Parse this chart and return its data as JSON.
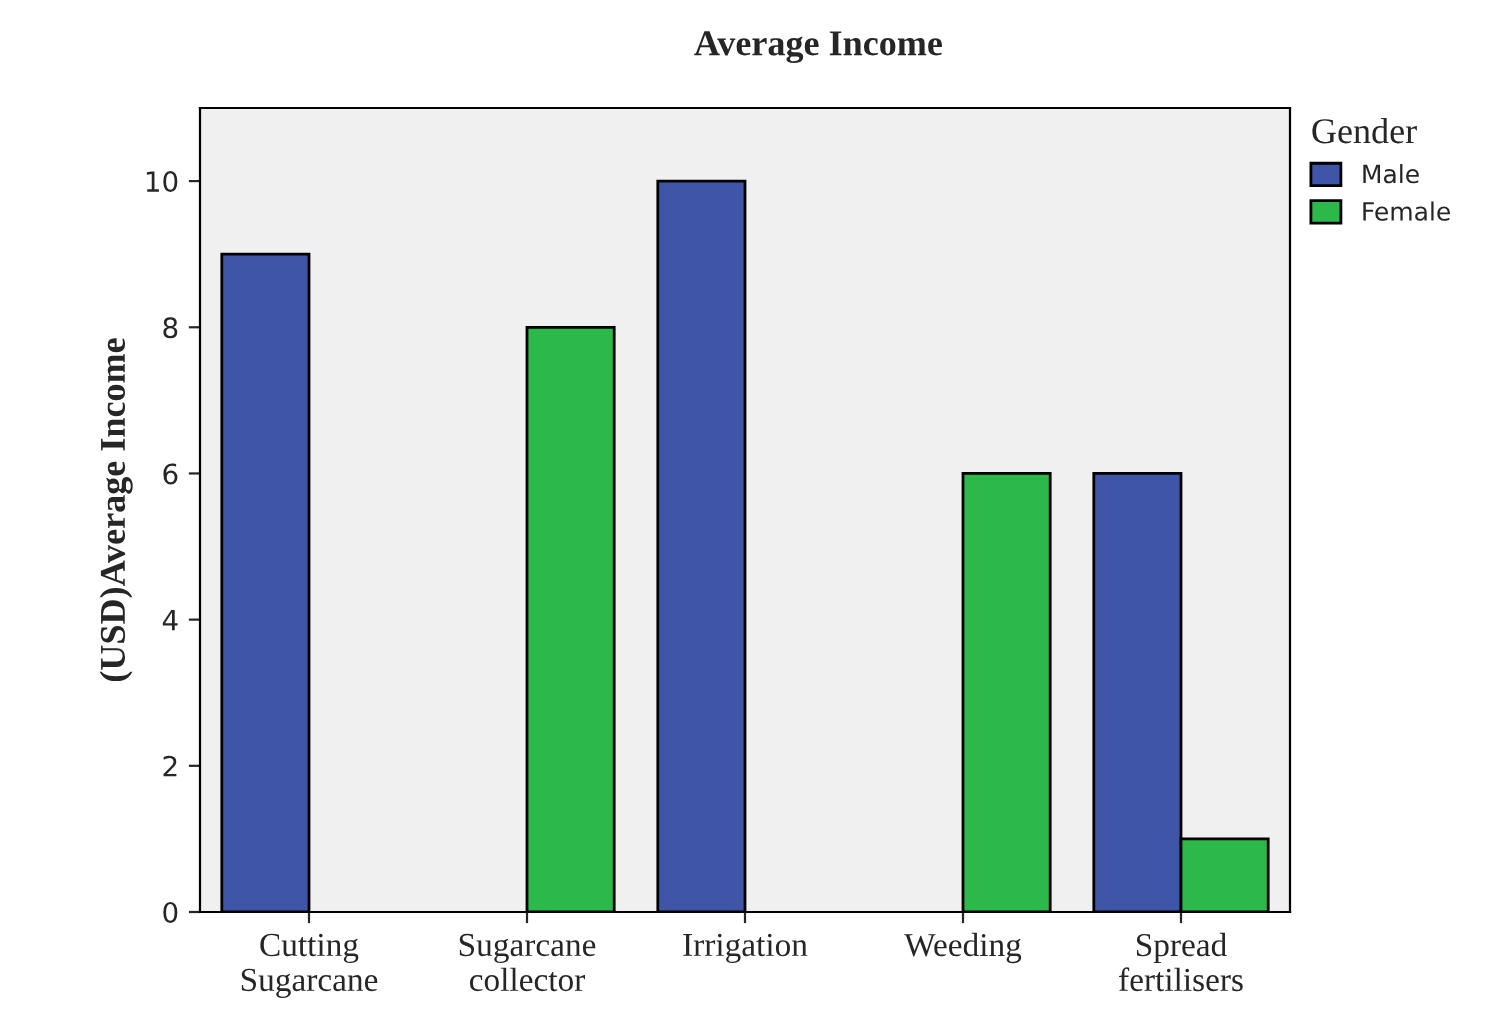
{
  "chart_data": {
    "type": "bar",
    "title": "Average Income",
    "ylabel": "(USD)Average Income",
    "legend_title": "Gender",
    "categories": [
      "Cutting Sugarcane",
      "Sugarcane collector",
      "Irrigation",
      "Weeding",
      "Spread fertilisers"
    ],
    "series": [
      {
        "name": "Male",
        "color": "#3f56a8",
        "values": [
          9,
          null,
          10,
          null,
          6
        ]
      },
      {
        "name": "Female",
        "color": "#2db84a",
        "values": [
          null,
          8,
          null,
          6,
          1
        ]
      }
    ],
    "ylim": [
      0,
      11
    ],
    "yticks": [
      0,
      2,
      4,
      6,
      8,
      10
    ],
    "grid": false,
    "legend": "top right"
  }
}
